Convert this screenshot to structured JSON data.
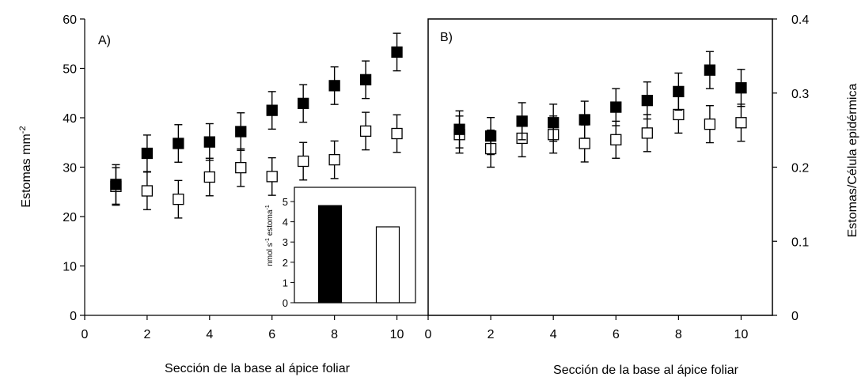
{
  "chart_data": [
    {
      "panel": "A)",
      "type": "scatter",
      "xlabel": "Sección de la base al ápice foliar",
      "ylabel": "Estomas mm",
      "ylabel_sup": "-2",
      "xlim": [
        0,
        11
      ],
      "ylim": [
        0,
        60
      ],
      "xticks": [
        0,
        2,
        4,
        6,
        8,
        10
      ],
      "yticks": [
        0,
        10,
        20,
        30,
        40,
        50,
        60
      ],
      "grid": false,
      "series": [
        {
          "marker": "filled-square",
          "color": "#000000",
          "x": [
            1,
            2,
            3,
            4,
            5,
            6,
            7,
            8,
            9,
            10
          ],
          "y": [
            26.5,
            32.8,
            34.8,
            35.1,
            37.2,
            41.5,
            42.9,
            46.5,
            47.7,
            53.3
          ],
          "err": [
            4.0,
            3.7,
            3.8,
            3.7,
            3.8,
            3.8,
            3.8,
            3.8,
            3.8,
            3.8
          ]
        },
        {
          "marker": "open-square",
          "color": "#ffffff",
          "x": [
            1,
            2,
            3,
            4,
            5,
            6,
            7,
            8,
            9,
            10
          ],
          "y": [
            26.1,
            25.2,
            23.5,
            28.0,
            29.9,
            28.1,
            31.2,
            31.5,
            37.3,
            36.8
          ],
          "err": [
            3.8,
            3.8,
            3.8,
            3.8,
            3.8,
            3.8,
            3.8,
            3.8,
            3.8,
            3.8
          ]
        }
      ],
      "inset": {
        "type": "bar",
        "ylabel": "nmol s",
        "ylabel_sup1": "-1",
        "ylabel_mid": " estoma",
        "ylabel_sup2": "-1",
        "ylim": [
          0,
          5
        ],
        "yticks": [
          0,
          1,
          2,
          3,
          4,
          5
        ],
        "values": [
          4.8,
          3.75
        ],
        "colors": [
          "#000000",
          "#ffffff"
        ]
      }
    },
    {
      "panel": "B)",
      "type": "scatter",
      "xlabel": "Sección de la base al ápice foliar",
      "ylabel": "Estomas/Célula epidérmica",
      "xlim": [
        0,
        11
      ],
      "ylim": [
        0,
        0.4
      ],
      "xticks": [
        0,
        2,
        4,
        6,
        8,
        10
      ],
      "yticks": [
        0,
        0.1,
        0.2,
        0.3,
        0.4
      ],
      "ytick_labels": [
        "0",
        "0.1",
        "0.2",
        "0.3",
        "0.4"
      ],
      "grid": false,
      "series": [
        {
          "marker": "filled-square",
          "color": "#000000",
          "x": [
            1,
            2,
            3,
            4,
            5,
            6,
            7,
            8,
            9,
            10
          ],
          "y": [
            0.251,
            0.242,
            0.262,
            0.26,
            0.264,
            0.281,
            0.29,
            0.302,
            0.331,
            0.307
          ],
          "err": [
            0.025,
            0.025,
            0.025,
            0.025,
            0.025,
            0.025,
            0.025,
            0.025,
            0.025,
            0.025
          ]
        },
        {
          "marker": "open-square",
          "color": "#ffffff",
          "x": [
            1,
            2,
            3,
            4,
            5,
            6,
            7,
            8,
            9,
            10
          ],
          "y": [
            0.244,
            0.225,
            0.239,
            0.244,
            0.232,
            0.237,
            0.246,
            0.271,
            0.258,
            0.26
          ],
          "err": [
            0.025,
            0.025,
            0.025,
            0.025,
            0.025,
            0.025,
            0.025,
            0.025,
            0.025,
            0.025
          ]
        }
      ]
    }
  ]
}
